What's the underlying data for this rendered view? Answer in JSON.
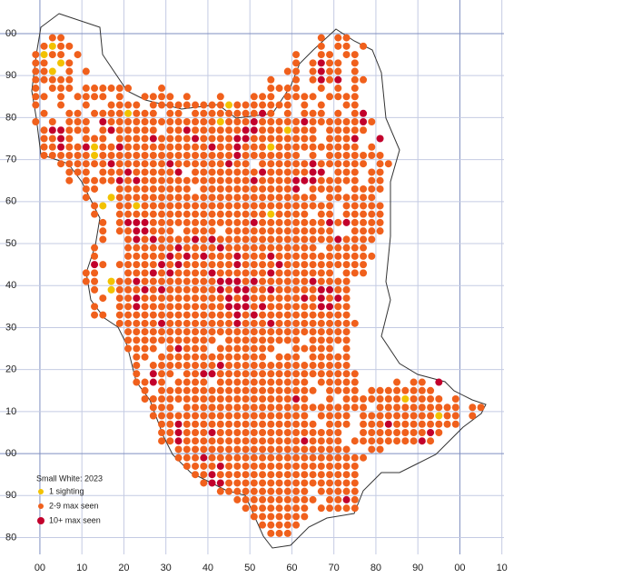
{
  "map": {
    "xlim": [
      -9.5,
      110.5
    ],
    "ylim": [
      -24,
      108
    ],
    "xticks": [
      {
        "value": 0,
        "label": "00"
      },
      10,
      20,
      30,
      40,
      50,
      60,
      70,
      80,
      90,
      {
        "value": 100,
        "label": "00"
      },
      {
        "value": 110,
        "label": "10"
      }
    ],
    "yticks": [
      {
        "value": 100,
        "label": "00"
      },
      90,
      80,
      70,
      60,
      50,
      40,
      30,
      20,
      10,
      {
        "value": 0,
        "label": "00"
      },
      {
        "value": -10,
        "label": "90"
      },
      {
        "value": -20,
        "label": "80"
      }
    ],
    "major_lines": [
      0,
      100
    ],
    "legend": {
      "title": "Small White:  2023",
      "items": [
        {
          "label": "1 sighting",
          "color": "#f2c200"
        },
        {
          "label": "2-9 max seen",
          "color": "#f0601c"
        },
        {
          "label": "10+ max seen",
          "color": "#c2002c"
        }
      ]
    },
    "dots": {
      "x0": -1,
      "y0": 99,
      "step": 2,
      "rows": [
        "..22..............................2.22",
        ".2122.............................2.22.2",
        "2122.2.........................2..22.22",
        "22.12..........................2.2322.2",
        "221.2.2.......................22.2322.2",
        "22222.......................2..2.2323.22",
        "2.222.222222...2............2222..2.2.2",
        "22.2.2222.2..2222.2...2...222.2222.2222",
        "2..2..2..2222.22222222212222222.2.2..22",
        ".2..22.22221222.22.2222222232.2.222.2.23",
        "2.2.222.322222222222221222322222322222232",
        ".233222.2322222.223222222332221222.22222",
        ".2232.222.222232222322223322222222.2223..3",
        ".22322312232222222222322322212222222222.2",
        ".2222221222222222222222232222222.2.2222222",
        "...22222232222223222222322.2222223222222.22",
        "....222.2223222223.2222222232222233.222.22",
        "....2.222232322222222222223222233322222.22",
        "......22..222222222.222222222223.2222.2222",
        "......2..1222222222222222222222222.222222",
        ".......21.22122222222222222222222222.22222",
        ".......2..22222222222222222212222.22.22222",
        "........2.23332222222222223222222223232222",
        "........2.2233222.2222.2222222222222..2222",
        "........2..232322223232222222222222232222",
        ".......2...22222232222322222222222.22222",
        ".......2...222223232322232223222222222222",
        ".......32.222223232222223222232222222222",
        "......22...2223232222322222232222222.222",
        "......22.12232222222223332322222232222",
        ".......2.12223232222223233223222223322",
        "........2.2232222222222323222222323232",
        ".......2..2232222222222333232222223322",
        ".......22.2222222222222232322222222222",
        "..........22222322222222322232222222222",
        "...........222222222222222222222222222",
        "...........22222222222.222222222.22222",
        "...........2222.23222.2222222..22222.2",
        "............22.2222222222222.222.22222",
        "............2.222222223222222222222222",
        "............2.322.223322222222222222222",
        "............2232.2222.22222222222.22222....2.22.3",
        ".............2.2222222222222222222.2222.22222222",
        ".............22222222222222222232..2.222222212222.2",
        "..............222.2222222222222222222222.2222222222.22",
        "..............2222222222222222222.2222.222222222122.2",
        "...............2232222222222222222.222.222322222222",
        "...............2232223222222222222222..2222222232",
        "...............2232222222222222232222.2222222232",
        ".................222222222222222222222..22",
        ".................22232222222222222222222",
        "..................222232222222222222222",
        "...................22322222222222222222",
        "....................2332222222222222222",
        "......................22222222222.22222",
        "........................2222222222.2232",
        ".........................22222222.22222",
        "..........................2222222..",
        "...........................22222",
        "............................222"
      ]
    }
  }
}
